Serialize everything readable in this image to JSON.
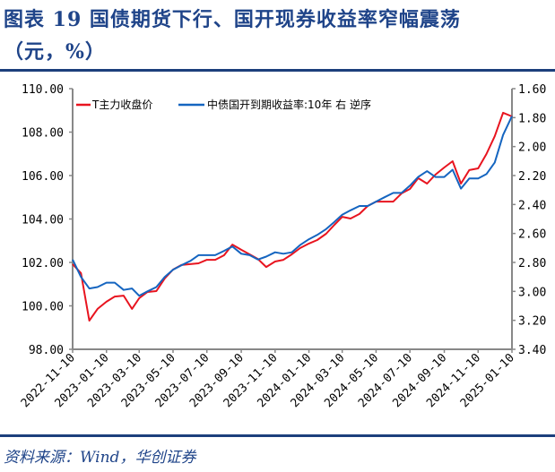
{
  "title": {
    "line1": "图表 19   国债期货下行、国开现券收益率窄幅震荡",
    "line2": "（元，%）"
  },
  "source": "资料来源：Wind，华创证券",
  "colors": {
    "title": "#1f4489",
    "rule": "#1c3f7c",
    "red": "#e8141f",
    "blue": "#1565c0",
    "axis": "#888888"
  },
  "chart_data": {
    "type": "line",
    "title": "",
    "xlabel": "",
    "ylabel": "",
    "y2label": "",
    "grid": false,
    "legend_position": "top-left",
    "x_ticks": [
      "2022-11-10",
      "2023-01-10",
      "2023-03-10",
      "2023-05-10",
      "2023-07-10",
      "2023-09-10",
      "2023-11-10",
      "2024-01-10",
      "2024-03-10",
      "2024-05-10",
      "2024-07-10",
      "2024-09-10",
      "2024-11-10",
      "2025-01-10"
    ],
    "y_left": {
      "ylim": [
        98,
        110
      ],
      "ticks": [
        "98.00",
        "100.00",
        "102.00",
        "104.00",
        "106.00",
        "108.00",
        "110.00"
      ]
    },
    "y_right": {
      "ylim": [
        1.6,
        3.4
      ],
      "reversed": true,
      "ticks": [
        "1.60",
        "1.80",
        "2.00",
        "2.20",
        "2.40",
        "2.60",
        "2.80",
        "3.00",
        "3.20",
        "3.40"
      ]
    },
    "x": [
      "2022-11-10",
      "2022-11-25",
      "2022-12-10",
      "2022-12-25",
      "2023-01-10",
      "2023-01-25",
      "2023-02-10",
      "2023-02-25",
      "2023-03-10",
      "2023-03-25",
      "2023-04-10",
      "2023-04-25",
      "2023-05-10",
      "2023-05-25",
      "2023-06-10",
      "2023-06-25",
      "2023-07-10",
      "2023-07-25",
      "2023-08-10",
      "2023-08-25",
      "2023-09-10",
      "2023-09-25",
      "2023-10-10",
      "2023-10-25",
      "2023-11-10",
      "2023-11-25",
      "2023-12-10",
      "2023-12-25",
      "2024-01-10",
      "2024-01-25",
      "2024-02-10",
      "2024-02-25",
      "2024-03-10",
      "2024-03-25",
      "2024-04-10",
      "2024-04-25",
      "2024-05-10",
      "2024-05-25",
      "2024-06-10",
      "2024-06-25",
      "2024-07-10",
      "2024-07-25",
      "2024-08-10",
      "2024-08-25",
      "2024-09-10",
      "2024-09-25",
      "2024-10-10",
      "2024-10-25",
      "2024-11-10",
      "2024-11-25",
      "2024-12-10",
      "2024-12-25",
      "2025-01-10"
    ],
    "series": [
      {
        "name": "T主力收盘价",
        "axis": "left",
        "color": "#e8141f",
        "values": [
          101.92,
          101.51,
          99.32,
          99.86,
          100.19,
          100.43,
          100.47,
          99.86,
          100.35,
          100.64,
          100.68,
          101.26,
          101.67,
          101.88,
          101.92,
          101.96,
          102.12,
          102.12,
          102.33,
          102.82,
          102.58,
          102.37,
          102.16,
          101.79,
          102.04,
          102.12,
          102.37,
          102.66,
          102.87,
          103.03,
          103.32,
          103.73,
          104.1,
          104.02,
          104.23,
          104.6,
          104.8,
          104.8,
          104.8,
          105.18,
          105.38,
          105.88,
          105.63,
          106.04,
          106.37,
          106.66,
          105.63,
          106.25,
          106.33,
          106.99,
          107.81,
          108.89,
          108.72
        ]
      },
      {
        "name": "中债国开到期收益率:10年 右 逆序",
        "axis": "right",
        "color": "#1565c0",
        "values": [
          2.78,
          2.9,
          2.98,
          2.97,
          2.94,
          2.94,
          2.99,
          2.98,
          3.03,
          3.0,
          2.97,
          2.9,
          2.85,
          2.82,
          2.79,
          2.75,
          2.75,
          2.75,
          2.72,
          2.69,
          2.74,
          2.75,
          2.78,
          2.76,
          2.73,
          2.74,
          2.73,
          2.68,
          2.64,
          2.61,
          2.57,
          2.52,
          2.47,
          2.44,
          2.41,
          2.41,
          2.38,
          2.35,
          2.32,
          2.32,
          2.27,
          2.21,
          2.17,
          2.21,
          2.21,
          2.16,
          2.29,
          2.22,
          2.22,
          2.19,
          2.11,
          1.92,
          1.79
        ]
      }
    ]
  }
}
